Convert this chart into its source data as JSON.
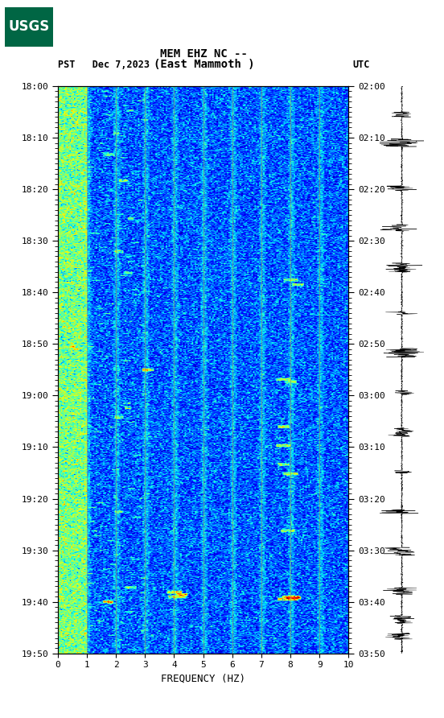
{
  "title_line1": "MEM EHZ NC --",
  "title_line2": "(East Mammoth )",
  "left_label": "PST   Dec 7,2023",
  "right_label": "UTC",
  "freq_min": 0,
  "freq_max": 10,
  "yticks_pst": [
    "18:00",
    "18:10",
    "18:20",
    "18:30",
    "18:40",
    "18:50",
    "19:00",
    "19:10",
    "19:20",
    "19:30",
    "19:40",
    "19:50"
  ],
  "yticks_utc": [
    "02:00",
    "02:10",
    "02:20",
    "02:30",
    "02:40",
    "02:50",
    "03:00",
    "03:10",
    "03:20",
    "03:30",
    "03:40",
    "03:50"
  ],
  "xticks": [
    0,
    1,
    2,
    3,
    4,
    5,
    6,
    7,
    8,
    9,
    10
  ],
  "xlabel": "FREQUENCY (HZ)",
  "vlines_x": [
    1,
    2,
    3,
    4,
    5,
    6,
    7,
    8,
    9
  ],
  "background_color": "#ffffff",
  "colormap": "jet",
  "figsize": [
    5.52,
    8.92
  ],
  "dpi": 100
}
